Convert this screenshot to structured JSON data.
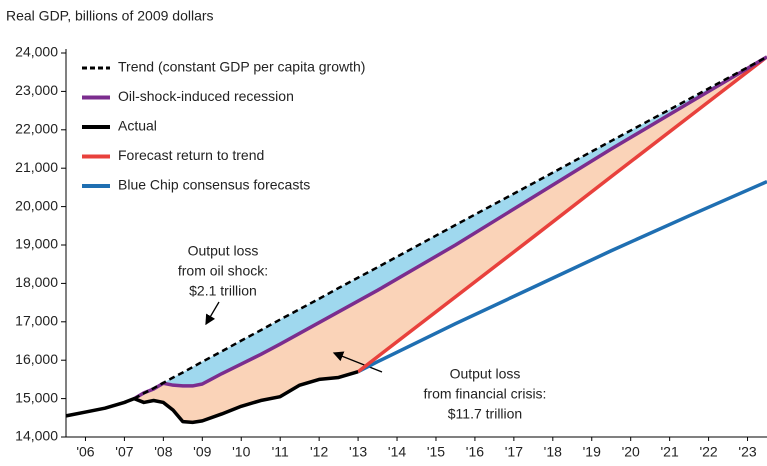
{
  "chart_data": {
    "type": "line",
    "title": "Real GDP, billions of 2009 dollars",
    "x": [
      2006,
      2006.5,
      2007,
      2007.5,
      2007.75,
      2008,
      2008.25,
      2008.5,
      2008.75,
      2009,
      2009.25,
      2009.5,
      2010,
      2010.5,
      2011,
      2011.5,
      2012,
      2012.5,
      2013,
      2013.5,
      2014,
      2016,
      2018,
      2020,
      2022,
      2024
    ],
    "series": [
      {
        "name": "Trend (constant GDP per capita growth)",
        "color": "#000000",
        "dashed": true,
        "values": [
          null,
          null,
          null,
          null,
          15000,
          15140,
          15270,
          15410,
          15550,
          15680,
          15820,
          15960,
          16230,
          16510,
          16780,
          17060,
          17330,
          17600,
          17880,
          18150,
          18420,
          19520,
          20610,
          21710,
          22800,
          23900
        ]
      },
      {
        "name": "Oil-shock-induced recession",
        "color": "#7b2d8e",
        "values": [
          null,
          null,
          null,
          null,
          15000,
          15150,
          15250,
          15400,
          15350,
          15330,
          15330,
          15380,
          15650,
          15900,
          16150,
          16420,
          16700,
          16980,
          17260,
          17540,
          17820,
          19000,
          20250,
          21500,
          22700,
          23900
        ]
      },
      {
        "name": "Actual",
        "color": "#000000",
        "values": [
          14550,
          14650,
          14750,
          14900,
          15000,
          14900,
          14950,
          14900,
          14700,
          14400,
          14380,
          14420,
          14600,
          14800,
          14950,
          15050,
          15350,
          15500,
          15550,
          15700,
          null,
          null,
          null,
          null,
          null,
          null
        ]
      },
      {
        "name": "Forecast return to trend",
        "color": "#e8413c",
        "values": [
          null,
          null,
          null,
          null,
          null,
          null,
          null,
          null,
          null,
          null,
          null,
          null,
          null,
          null,
          null,
          null,
          null,
          null,
          null,
          15700,
          16090,
          17650,
          19210,
          20780,
          22340,
          23900
        ]
      },
      {
        "name": "Blue Chip consensus forecasts",
        "color": "#1f6fb2",
        "values": [
          null,
          null,
          null,
          null,
          null,
          null,
          null,
          null,
          null,
          null,
          null,
          null,
          null,
          null,
          null,
          null,
          null,
          null,
          null,
          15700,
          15960,
          16950,
          17900,
          18850,
          19760,
          20650
        ]
      }
    ],
    "xlim": [
      2006,
      2024
    ],
    "xticks": [
      {
        "value": 2006.5,
        "label": "'06"
      },
      {
        "value": 2007.5,
        "label": "'07"
      },
      {
        "value": 2008.5,
        "label": "'08"
      },
      {
        "value": 2009.5,
        "label": "'09"
      },
      {
        "value": 2010.5,
        "label": "'10"
      },
      {
        "value": 2011.5,
        "label": "'11"
      },
      {
        "value": 2012.5,
        "label": "'12"
      },
      {
        "value": 2013.5,
        "label": "'13"
      },
      {
        "value": 2014.5,
        "label": "'14"
      },
      {
        "value": 2015.5,
        "label": "'15"
      },
      {
        "value": 2016.5,
        "label": "'16"
      },
      {
        "value": 2017.5,
        "label": "'17"
      },
      {
        "value": 2018.5,
        "label": "'18"
      },
      {
        "value": 2019.5,
        "label": "'19"
      },
      {
        "value": 2020.5,
        "label": "'20"
      },
      {
        "value": 2021.5,
        "label": "'21"
      },
      {
        "value": 2022.5,
        "label": "'22"
      },
      {
        "value": 2023.5,
        "label": "'23"
      }
    ],
    "ylim": [
      14000,
      24000
    ],
    "yticks": [
      {
        "value": 14000,
        "label": "14,000"
      },
      {
        "value": 15000,
        "label": "15,000"
      },
      {
        "value": 16000,
        "label": "16,000"
      },
      {
        "value": 17000,
        "label": "17,000"
      },
      {
        "value": 18000,
        "label": "18,000"
      },
      {
        "value": 19000,
        "label": "19,000"
      },
      {
        "value": 20000,
        "label": "20,000"
      },
      {
        "value": 21000,
        "label": "21,000"
      },
      {
        "value": 22000,
        "label": "22,000"
      },
      {
        "value": 23000,
        "label": "23,000"
      },
      {
        "value": 24000,
        "label": "24,000"
      }
    ],
    "annotations": [
      {
        "lines": [
          "Output loss",
          "from oil shock:",
          "$2.1 trillion"
        ]
      },
      {
        "lines": [
          "Output loss",
          "from financial crisis:",
          "$11.7 trillion"
        ]
      }
    ]
  }
}
